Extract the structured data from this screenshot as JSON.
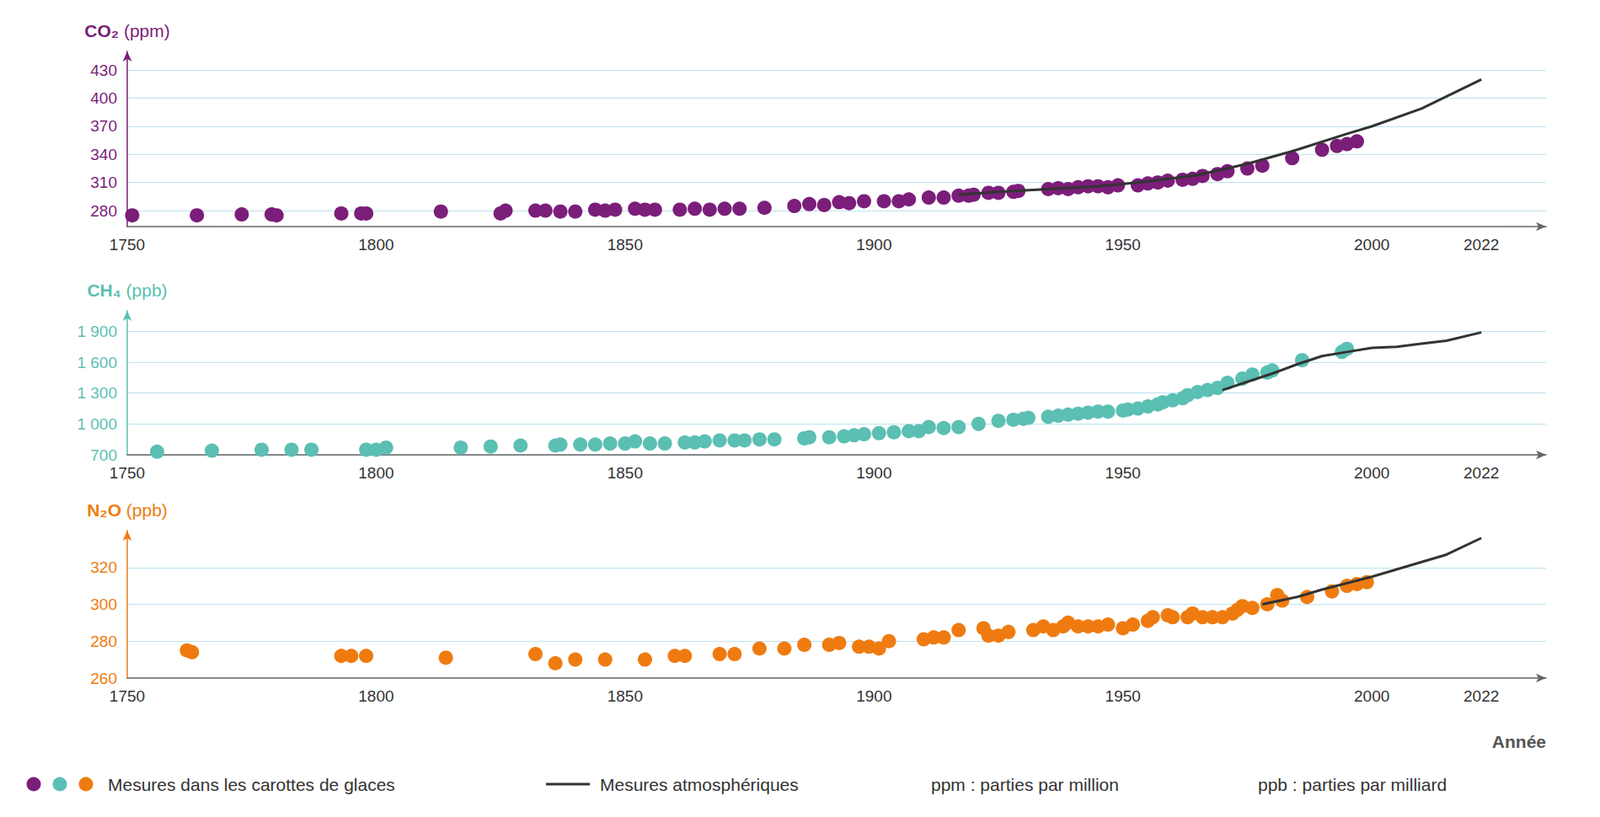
{
  "chart_data": [
    {
      "type": "scatter",
      "y_label": "CO₂ (ppm)",
      "xlim": [
        1750,
        2035
      ],
      "xticks": [
        1750,
        1800,
        1850,
        1900,
        1950,
        2000,
        2022
      ],
      "ylim": [
        263,
        450
      ],
      "yticks": [
        280,
        310,
        340,
        370,
        400,
        430
      ],
      "grid": true,
      "series": [
        {
          "name": "Mesures dans les carottes de glaces",
          "type": "scatter",
          "marker": "circle",
          "color": "#7b1e7a",
          "x": [
            1751,
            1764,
            1773,
            1779,
            1780,
            1793,
            1797,
            1798,
            1813,
            1825,
            1826,
            1832,
            1834,
            1837,
            1840,
            1844,
            1846,
            1848,
            1852,
            1854,
            1856,
            1861,
            1864,
            1867,
            1870,
            1873,
            1878,
            1884,
            1887,
            1890,
            1893,
            1895,
            1898,
            1902,
            1905,
            1907,
            1911,
            1914,
            1917,
            1919,
            1920,
            1923,
            1925,
            1928,
            1929,
            1935,
            1937,
            1939,
            1941,
            1943,
            1945,
            1947,
            1949,
            1953,
            1955,
            1957,
            1959,
            1962,
            1964,
            1966,
            1969,
            1971,
            1975,
            1978,
            1984,
            1990,
            1993,
            1995,
            1997
          ],
          "values": [
            275,
            275,
            276,
            276,
            275,
            277,
            277,
            277,
            279,
            277,
            280,
            280,
            280,
            279,
            279,
            281,
            280,
            281,
            282,
            281,
            281,
            281,
            282,
            281,
            282,
            282,
            283,
            285,
            287,
            286,
            289,
            288,
            290,
            290,
            290,
            292,
            294,
            294,
            296,
            296,
            297,
            299,
            299,
            300,
            301,
            303,
            304,
            303,
            305,
            306,
            306,
            305,
            307,
            307,
            309,
            310,
            312,
            313,
            314,
            317,
            319,
            322,
            325,
            328,
            336,
            345,
            349,
            351,
            354
          ]
        },
        {
          "name": "Mesures atmosphériques",
          "type": "line",
          "line_style": "solid",
          "color": "#333333",
          "x": [
            1917,
            1925,
            1935,
            1945,
            1955,
            1965,
            1975,
            1985,
            1995,
            2000,
            2010,
            2022
          ],
          "values": [
            297,
            300,
            303,
            306,
            311,
            318,
            330,
            345,
            362,
            370,
            389,
            420
          ]
        }
      ]
    },
    {
      "type": "scatter",
      "y_label": "CH₄ (ppb)",
      "xlim": [
        1750,
        2035
      ],
      "xticks": [
        1750,
        1800,
        1850,
        1900,
        1950,
        2000,
        2022
      ],
      "ylim": [
        700,
        2100
      ],
      "yticks": [
        700,
        {
          "value": 1000,
          "label": "1 000"
        },
        {
          "value": 1300,
          "label": "1 300"
        },
        {
          "value": 1600,
          "label": "1 600"
        },
        {
          "value": 1900,
          "label": "1 900"
        }
      ],
      "grid": true,
      "series": [
        {
          "name": "Mesures dans les carottes de glaces",
          "type": "scatter",
          "marker": "circle",
          "color": "#5bbfb3",
          "x": [
            1756,
            1767,
            1777,
            1783,
            1787,
            1798,
            1800,
            1802,
            1817,
            1823,
            1829,
            1836,
            1837,
            1841,
            1844,
            1847,
            1850,
            1852,
            1855,
            1858,
            1862,
            1864,
            1866,
            1869,
            1872,
            1874,
            1877,
            1880,
            1886,
            1887,
            1891,
            1894,
            1896,
            1898,
            1901,
            1904,
            1907,
            1909,
            1911,
            1914,
            1917,
            1921,
            1925,
            1928,
            1930,
            1931,
            1935,
            1937,
            1939,
            1941,
            1943,
            1945,
            1947,
            1950,
            1951,
            1953,
            1955,
            1957,
            1958,
            1960,
            1962,
            1963,
            1965,
            1967,
            1969,
            1971,
            1974,
            1976,
            1979,
            1980,
            1986,
            1994,
            1995
          ],
          "values": [
            730,
            740,
            750,
            750,
            750,
            750,
            750,
            770,
            770,
            780,
            790,
            790,
            800,
            800,
            800,
            810,
            810,
            830,
            810,
            810,
            820,
            820,
            830,
            840,
            840,
            840,
            850,
            850,
            860,
            870,
            870,
            880,
            890,
            900,
            910,
            920,
            930,
            930,
            970,
            960,
            970,
            1000,
            1030,
            1040,
            1050,
            1060,
            1070,
            1080,
            1090,
            1100,
            1110,
            1120,
            1120,
            1130,
            1140,
            1150,
            1170,
            1190,
            1210,
            1230,
            1250,
            1280,
            1310,
            1330,
            1350,
            1400,
            1440,
            1480,
            1500,
            1520,
            1620,
            1700,
            1730
          ]
        },
        {
          "name": "Mesures atmosphériques",
          "type": "line",
          "line_style": "solid",
          "color": "#333333",
          "x": [
            1970,
            1975,
            1980,
            1985,
            1990,
            1995,
            2000,
            2005,
            2010,
            2015,
            2022
          ],
          "values": [
            1330,
            1410,
            1490,
            1580,
            1660,
            1700,
            1740,
            1750,
            1780,
            1810,
            1890
          ]
        }
      ]
    },
    {
      "type": "scatter",
      "y_label": "N₂O (ppb)",
      "x_label": "Année",
      "legend": "bottom",
      "xlim": [
        1750,
        2035
      ],
      "xticks": [
        1750,
        1800,
        1850,
        1900,
        1950,
        2000,
        2022
      ],
      "ylim": [
        260,
        340
      ],
      "yticks": [
        260,
        280,
        300,
        320
      ],
      "grid": true,
      "series": [
        {
          "name": "Mesures dans les carottes de glaces",
          "type": "scatter",
          "marker": "circle",
          "color": "#ef7b10",
          "x": [
            1762,
            1763,
            1793,
            1795,
            1798,
            1814,
            1832,
            1836,
            1840,
            1846,
            1854,
            1860,
            1862,
            1869,
            1872,
            1877,
            1882,
            1886,
            1891,
            1893,
            1897,
            1899,
            1901,
            1903,
            1910,
            1912,
            1914,
            1917,
            1922,
            1923,
            1925,
            1927,
            1932,
            1934,
            1936,
            1938,
            1939,
            1941,
            1943,
            1945,
            1947,
            1950,
            1952,
            1955,
            1956,
            1959,
            1960,
            1963,
            1964,
            1966,
            1968,
            1970,
            1972,
            1973,
            1974,
            1976,
            1979,
            1981,
            1982,
            1987,
            1992,
            1995,
            1997,
            1999
          ],
          "values": [
            275,
            274,
            272,
            272,
            272,
            271,
            273,
            268,
            270,
            270,
            270,
            272,
            272,
            273,
            273,
            276,
            276,
            278,
            278,
            279,
            277,
            277,
            276,
            280,
            281,
            282,
            282,
            286,
            287,
            283,
            283,
            285,
            286,
            288,
            286,
            288,
            290,
            288,
            288,
            288,
            289,
            287,
            289,
            291,
            293,
            294,
            293,
            293,
            295,
            293,
            293,
            293,
            295,
            297,
            299,
            298,
            300,
            305,
            302,
            304,
            307,
            310,
            311,
            312
          ]
        },
        {
          "name": "Mesures atmosphériques",
          "type": "line",
          "line_style": "solid",
          "color": "#333333",
          "x": [
            1978,
            1985,
            1990,
            2000,
            2010,
            2015,
            2022
          ],
          "values": [
            300,
            304,
            308,
            315,
            323,
            327,
            336
          ]
        }
      ]
    }
  ],
  "notes": [
    "ppm : parties par million",
    "ppb : parties par milliard"
  ]
}
